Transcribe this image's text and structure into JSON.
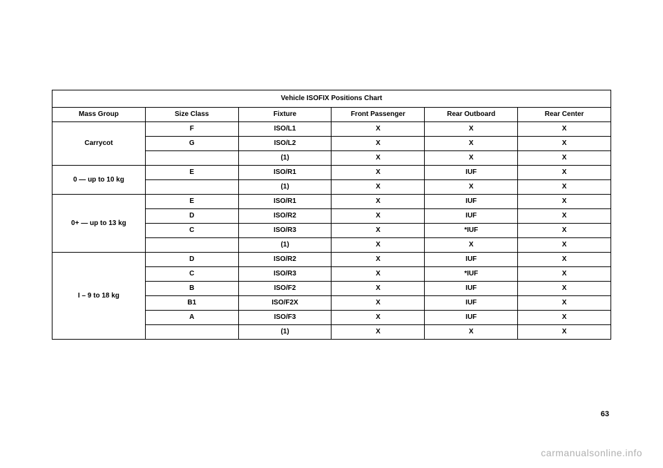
{
  "table": {
    "title": "Vehicle ISOFIX Positions Chart",
    "headers": [
      "Mass Group",
      "Size Class",
      "Fixture",
      "Front Passenger",
      "Rear Outboard",
      "Rear Center"
    ],
    "groups": [
      {
        "label": "Carrycot",
        "rows": [
          [
            "F",
            "ISO/L1",
            "X",
            "X",
            "X"
          ],
          [
            "G",
            "ISO/L2",
            "X",
            "X",
            "X"
          ],
          [
            "",
            "(1)",
            "X",
            "X",
            "X"
          ]
        ]
      },
      {
        "label": "0 — up to 10 kg",
        "rows": [
          [
            "E",
            "ISO/R1",
            "X",
            "IUF",
            "X"
          ],
          [
            "",
            "(1)",
            "X",
            "X",
            "X"
          ]
        ]
      },
      {
        "label": "0+ — up to 13 kg",
        "rows": [
          [
            "E",
            "ISO/R1",
            "X",
            "IUF",
            "X"
          ],
          [
            "D",
            "ISO/R2",
            "X",
            "IUF",
            "X"
          ],
          [
            "C",
            "ISO/R3",
            "X",
            "*IUF",
            "X"
          ],
          [
            "",
            "(1)",
            "X",
            "X",
            "X"
          ]
        ]
      },
      {
        "label": "I – 9 to 18 kg",
        "rows": [
          [
            "D",
            "ISO/R2",
            "X",
            "IUF",
            "X"
          ],
          [
            "C",
            "ISO/R3",
            "X",
            "*IUF",
            "X"
          ],
          [
            "B",
            "ISO/F2",
            "X",
            "IUF",
            "X"
          ],
          [
            "B1",
            "ISO/F2X",
            "X",
            "IUF",
            "X"
          ],
          [
            "A",
            "ISO/F3",
            "X",
            "IUF",
            "X"
          ],
          [
            "",
            "(1)",
            "X",
            "X",
            "X"
          ]
        ]
      }
    ]
  },
  "pageNumber": "63",
  "watermark": "carmanualsonline.info",
  "colors": {
    "border": "#000000",
    "text": "#000000",
    "watermark": "#b0b0b0",
    "background": "#ffffff"
  }
}
